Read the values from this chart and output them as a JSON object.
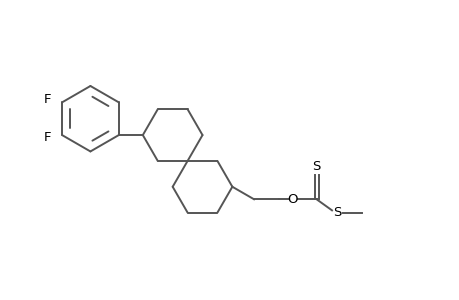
{
  "background_color": "#ffffff",
  "line_color": "#555555",
  "text_color": "#000000",
  "line_width": 1.4,
  "font_size": 9.0,
  "figsize": [
    4.6,
    3.0
  ],
  "dpi": 100,
  "xlim": [
    0,
    9.5
  ],
  "ylim": [
    0.5,
    6.0
  ]
}
